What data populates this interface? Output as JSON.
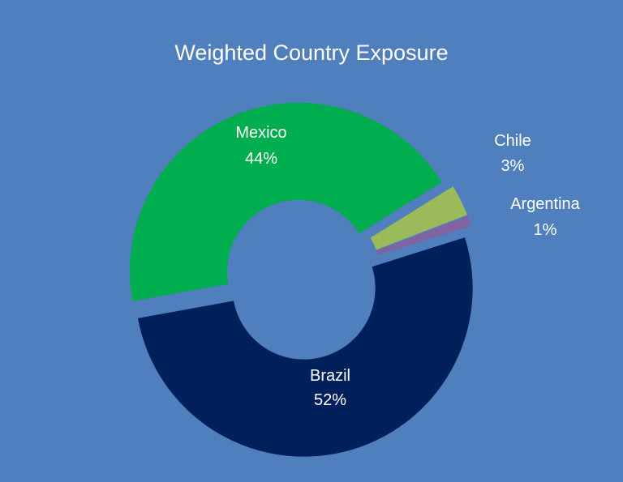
{
  "chart_data": {
    "type": "pie",
    "title": "Weighted Country Exposure",
    "slices": [
      {
        "label": "Brazil",
        "value": 52,
        "value_label": "52%",
        "color": "#00205c"
      },
      {
        "label": "Mexico",
        "value": 44,
        "value_label": "44%",
        "color": "#00ad4f"
      },
      {
        "label": "Chile",
        "value": 3,
        "value_label": "3%",
        "color": "#9bbb5a"
      },
      {
        "label": "Argentina",
        "value": 1,
        "value_label": "1%",
        "color": "#8064a2"
      }
    ],
    "donut": true,
    "exploded": true
  }
}
